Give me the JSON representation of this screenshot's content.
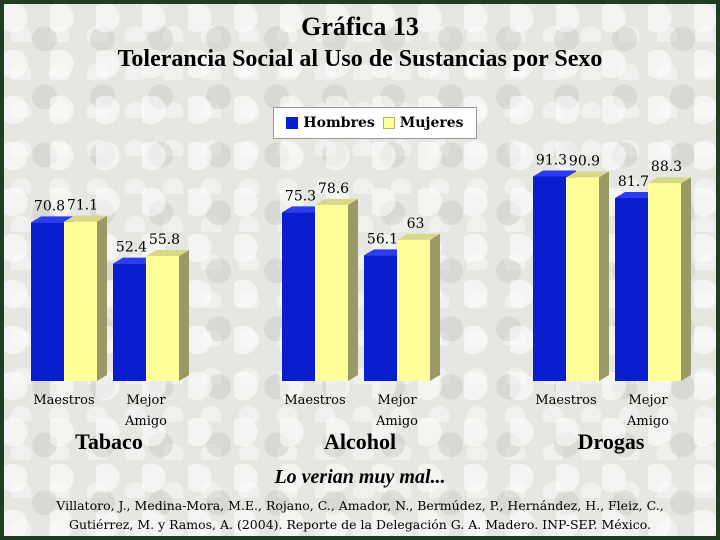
{
  "header": {
    "title": "Gráfica 13",
    "subtitle": "Tolerancia Social al Uso de Sustancias por Sexo"
  },
  "legend": [
    {
      "label": "Hombres",
      "color": "#0a1ed0"
    },
    {
      "label": "Mujeres",
      "color": "#ffff99"
    }
  ],
  "chart_data": {
    "type": "bar",
    "legend_position": "top-center",
    "grid": false,
    "ylim": [
      0,
      100
    ],
    "groups": [
      {
        "name": "Tabaco",
        "categories": [
          {
            "l1": "Maestros",
            "l2": ""
          },
          {
            "l1": "Mejor",
            "l2": "Amigo"
          }
        ],
        "values": {
          "Hombres": [
            70.8,
            52.4
          ],
          "Mujeres": [
            71.1,
            55.8
          ]
        }
      },
      {
        "name": "Alcohol",
        "categories": [
          {
            "l1": "Maestros",
            "l2": ""
          },
          {
            "l1": "Mejor",
            "l2": "Amigo"
          }
        ],
        "values": {
          "Hombres": [
            75.3,
            56.1
          ],
          "Mujeres": [
            78.6,
            63
          ]
        }
      },
      {
        "name": "Drogas",
        "categories": [
          {
            "l1": "Maestros",
            "l2": ""
          },
          {
            "l1": "Mejor",
            "l2": "Amigo"
          }
        ],
        "values": {
          "Hombres": [
            91.3,
            81.7
          ],
          "Mujeres": [
            90.9,
            88.3
          ]
        }
      }
    ],
    "series": [
      {
        "name": "Hombres",
        "color": "#0a1ed0"
      },
      {
        "name": "Mujeres",
        "color": "#ffff99"
      }
    ]
  },
  "caption": "Lo verian muy mal...",
  "citation": {
    "line1": "Villatoro, J., Medina-Mora, M.E., Rojano, C., Amador, N., Bermúdez, P., Hernández, H., Fleiz, C.,",
    "line2": "Gutiérrez, M. y Ramos, A. (2004). Reporte de la Delegación G. A. Madero. INP-SEP. México."
  }
}
